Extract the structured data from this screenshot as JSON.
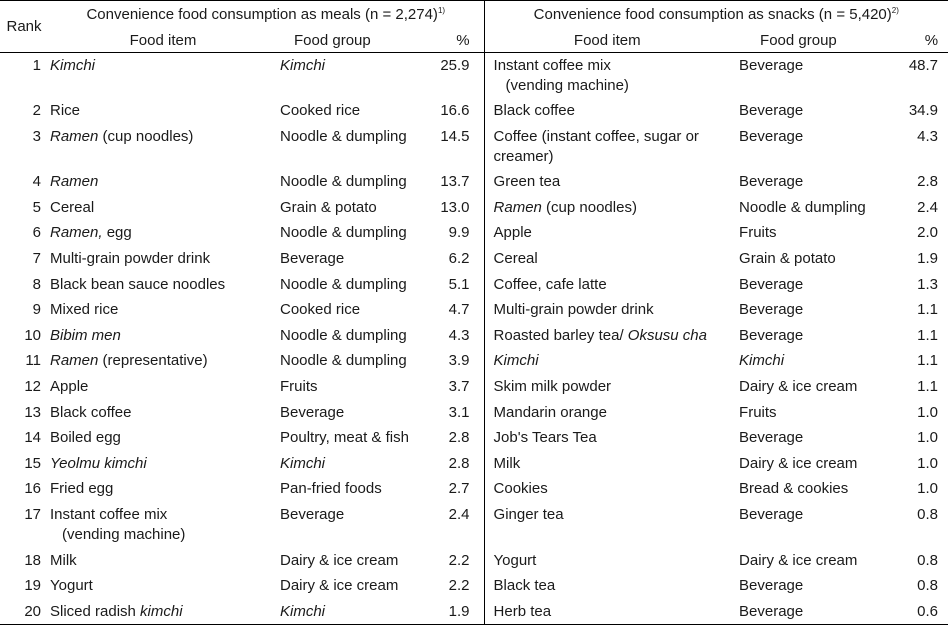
{
  "header": {
    "rank_label": "Rank",
    "meals_title": "Convenience food consumption as meals (n = 2,274)",
    "meals_note": "1)",
    "snacks_title": "Convenience food consumption as snacks (n = 5,420)",
    "snacks_note": "2)",
    "col_food_item": "Food item",
    "col_food_group": "Food group",
    "col_pct": "%"
  },
  "rows": [
    {
      "rank": "1",
      "meal": {
        "item": [
          {
            "t": "Kimchi",
            "i": true
          }
        ],
        "group": [
          {
            "t": "Kimchi",
            "i": true
          }
        ],
        "pct": "25.9"
      },
      "snack": {
        "item": [
          {
            "t": "Instant coffee mix",
            "i": false
          }
        ],
        "item2": "(vending machine)",
        "group": [
          {
            "t": "Beverage",
            "i": false
          }
        ],
        "pct": "48.7"
      },
      "tall": true
    },
    {
      "rank": "2",
      "meal": {
        "item": [
          {
            "t": "Rice",
            "i": false
          }
        ],
        "group": [
          {
            "t": "Cooked rice",
            "i": false
          }
        ],
        "pct": "16.6"
      },
      "snack": {
        "item": [
          {
            "t": "Black coffee",
            "i": false
          }
        ],
        "group": [
          {
            "t": "Beverage",
            "i": false
          }
        ],
        "pct": "34.9"
      }
    },
    {
      "rank": "3",
      "meal": {
        "item": [
          {
            "t": "Ramen",
            "i": true
          },
          {
            "t": " (cup noodles)",
            "i": false
          }
        ],
        "group": [
          {
            "t": "Noodle & dumpling",
            "i": false
          }
        ],
        "pct": "14.5"
      },
      "snack": {
        "item": [
          {
            "t": "Coffee (instant coffee, sugar or",
            "i": false
          }
        ],
        "item2": "creamer)",
        "group": [
          {
            "t": "Beverage",
            "i": false
          }
        ],
        "pct": "4.3"
      },
      "tall": true
    },
    {
      "rank": "4",
      "meal": {
        "item": [
          {
            "t": "Ramen",
            "i": true
          }
        ],
        "group": [
          {
            "t": "Noodle & dumpling",
            "i": false
          }
        ],
        "pct": "13.7"
      },
      "snack": {
        "item": [
          {
            "t": "Green tea",
            "i": false
          }
        ],
        "group": [
          {
            "t": "Beverage",
            "i": false
          }
        ],
        "pct": "2.8"
      }
    },
    {
      "rank": "5",
      "meal": {
        "item": [
          {
            "t": "Cereal",
            "i": false
          }
        ],
        "group": [
          {
            "t": "Grain & potato",
            "i": false
          }
        ],
        "pct": "13.0"
      },
      "snack": {
        "item": [
          {
            "t": "Ramen",
            "i": true
          },
          {
            "t": " (cup noodles)",
            "i": false
          }
        ],
        "group": [
          {
            "t": "Noodle & dumpling",
            "i": false
          }
        ],
        "pct": "2.4"
      }
    },
    {
      "rank": "6",
      "meal": {
        "item": [
          {
            "t": "Ramen,",
            "i": true
          },
          {
            "t": " egg",
            "i": false
          }
        ],
        "group": [
          {
            "t": "Noodle & dumpling",
            "i": false
          }
        ],
        "pct": "9.9"
      },
      "snack": {
        "item": [
          {
            "t": "Apple",
            "i": false
          }
        ],
        "group": [
          {
            "t": "Fruits",
            "i": false
          }
        ],
        "pct": "2.0"
      }
    },
    {
      "rank": "7",
      "meal": {
        "item": [
          {
            "t": "Multi-grain powder drink",
            "i": false
          }
        ],
        "group": [
          {
            "t": "Beverage",
            "i": false
          }
        ],
        "pct": "6.2"
      },
      "snack": {
        "item": [
          {
            "t": "Cereal",
            "i": false
          }
        ],
        "group": [
          {
            "t": "Grain & potato",
            "i": false
          }
        ],
        "pct": "1.9"
      }
    },
    {
      "rank": "8",
      "meal": {
        "item": [
          {
            "t": "Black bean sauce noodles",
            "i": false
          }
        ],
        "group": [
          {
            "t": "Noodle & dumpling",
            "i": false
          }
        ],
        "pct": "5.1"
      },
      "snack": {
        "item": [
          {
            "t": "Coffee, cafe latte",
            "i": false
          }
        ],
        "group": [
          {
            "t": "Beverage",
            "i": false
          }
        ],
        "pct": "1.3"
      }
    },
    {
      "rank": "9",
      "meal": {
        "item": [
          {
            "t": "Mixed rice",
            "i": false
          }
        ],
        "group": [
          {
            "t": "Cooked rice",
            "i": false
          }
        ],
        "pct": "4.7"
      },
      "snack": {
        "item": [
          {
            "t": "Multi-grain powder drink",
            "i": false
          }
        ],
        "group": [
          {
            "t": "Beverage",
            "i": false
          }
        ],
        "pct": "1.1"
      }
    },
    {
      "rank": "10",
      "meal": {
        "item": [
          {
            "t": "Bibim men",
            "i": true
          }
        ],
        "group": [
          {
            "t": "Noodle & dumpling",
            "i": false
          }
        ],
        "pct": "4.3"
      },
      "snack": {
        "item": [
          {
            "t": "Roasted barley tea/ ",
            "i": false
          },
          {
            "t": "Oksusu cha",
            "i": true
          }
        ],
        "group": [
          {
            "t": "Beverage",
            "i": false
          }
        ],
        "pct": "1.1"
      }
    },
    {
      "rank": "11",
      "meal": {
        "item": [
          {
            "t": "Ramen",
            "i": true
          },
          {
            "t": " (representative)",
            "i": false
          }
        ],
        "group": [
          {
            "t": "Noodle & dumpling",
            "i": false
          }
        ],
        "pct": "3.9"
      },
      "snack": {
        "item": [
          {
            "t": "Kimchi",
            "i": true
          }
        ],
        "group": [
          {
            "t": "Kimchi",
            "i": true
          }
        ],
        "pct": "1.1"
      }
    },
    {
      "rank": "12",
      "meal": {
        "item": [
          {
            "t": "Apple",
            "i": false
          }
        ],
        "group": [
          {
            "t": "Fruits",
            "i": false
          }
        ],
        "pct": "3.7"
      },
      "snack": {
        "item": [
          {
            "t": "Skim milk powder",
            "i": false
          }
        ],
        "group": [
          {
            "t": "Dairy & ice cream",
            "i": false
          }
        ],
        "pct": "1.1"
      }
    },
    {
      "rank": "13",
      "meal": {
        "item": [
          {
            "t": "Black coffee",
            "i": false
          }
        ],
        "group": [
          {
            "t": "Beverage",
            "i": false
          }
        ],
        "pct": "3.1"
      },
      "snack": {
        "item": [
          {
            "t": "Mandarin orange",
            "i": false
          }
        ],
        "group": [
          {
            "t": "Fruits",
            "i": false
          }
        ],
        "pct": "1.0"
      }
    },
    {
      "rank": "14",
      "meal": {
        "item": [
          {
            "t": "Boiled egg",
            "i": false
          }
        ],
        "group": [
          {
            "t": "Poultry, meat & fish",
            "i": false
          }
        ],
        "pct": "2.8"
      },
      "snack": {
        "item": [
          {
            "t": "Job's Tears Tea",
            "i": false
          }
        ],
        "group": [
          {
            "t": "Beverage",
            "i": false
          }
        ],
        "pct": "1.0"
      }
    },
    {
      "rank": "15",
      "meal": {
        "item": [
          {
            "t": "Yeolmu kimchi",
            "i": true
          }
        ],
        "group": [
          {
            "t": "Kimchi",
            "i": true
          }
        ],
        "pct": "2.8"
      },
      "snack": {
        "item": [
          {
            "t": "Milk",
            "i": false
          }
        ],
        "group": [
          {
            "t": "Dairy & ice cream",
            "i": false
          }
        ],
        "pct": "1.0"
      }
    },
    {
      "rank": "16",
      "meal": {
        "item": [
          {
            "t": "Fried egg",
            "i": false
          }
        ],
        "group": [
          {
            "t": "Pan-fried foods",
            "i": false
          }
        ],
        "pct": "2.7"
      },
      "snack": {
        "item": [
          {
            "t": "Cookies",
            "i": false
          }
        ],
        "group": [
          {
            "t": "Bread & cookies",
            "i": false
          }
        ],
        "pct": "1.0"
      }
    },
    {
      "rank": "17",
      "meal": {
        "item": [
          {
            "t": "Instant coffee mix",
            "i": false
          }
        ],
        "item2": "(vending machine)",
        "group": [
          {
            "t": "Beverage",
            "i": false
          }
        ],
        "pct": "2.4"
      },
      "snack": {
        "item": [
          {
            "t": "Ginger tea",
            "i": false
          }
        ],
        "group": [
          {
            "t": "Beverage",
            "i": false
          }
        ],
        "pct": "0.8"
      },
      "tall": true
    },
    {
      "rank": "18",
      "meal": {
        "item": [
          {
            "t": "Milk",
            "i": false
          }
        ],
        "group": [
          {
            "t": "Dairy & ice cream",
            "i": false
          }
        ],
        "pct": "2.2"
      },
      "snack": {
        "item": [
          {
            "t": "Yogurt",
            "i": false
          }
        ],
        "group": [
          {
            "t": "Dairy & ice cream",
            "i": false
          }
        ],
        "pct": "0.8"
      }
    },
    {
      "rank": "19",
      "meal": {
        "item": [
          {
            "t": "Yogurt",
            "i": false
          }
        ],
        "group": [
          {
            "t": "Dairy & ice cream",
            "i": false
          }
        ],
        "pct": "2.2"
      },
      "snack": {
        "item": [
          {
            "t": "Black tea",
            "i": false
          }
        ],
        "group": [
          {
            "t": "Beverage",
            "i": false
          }
        ],
        "pct": "0.8"
      }
    },
    {
      "rank": "20",
      "meal": {
        "item": [
          {
            "t": "Sliced radish ",
            "i": false
          },
          {
            "t": "kimchi",
            "i": true
          }
        ],
        "group": [
          {
            "t": "Kimchi",
            "i": true
          }
        ],
        "pct": "1.9"
      },
      "snack": {
        "item": [
          {
            "t": "Herb tea",
            "i": false
          }
        ],
        "group": [
          {
            "t": "Beverage",
            "i": false
          }
        ],
        "pct": "0.6"
      }
    }
  ]
}
